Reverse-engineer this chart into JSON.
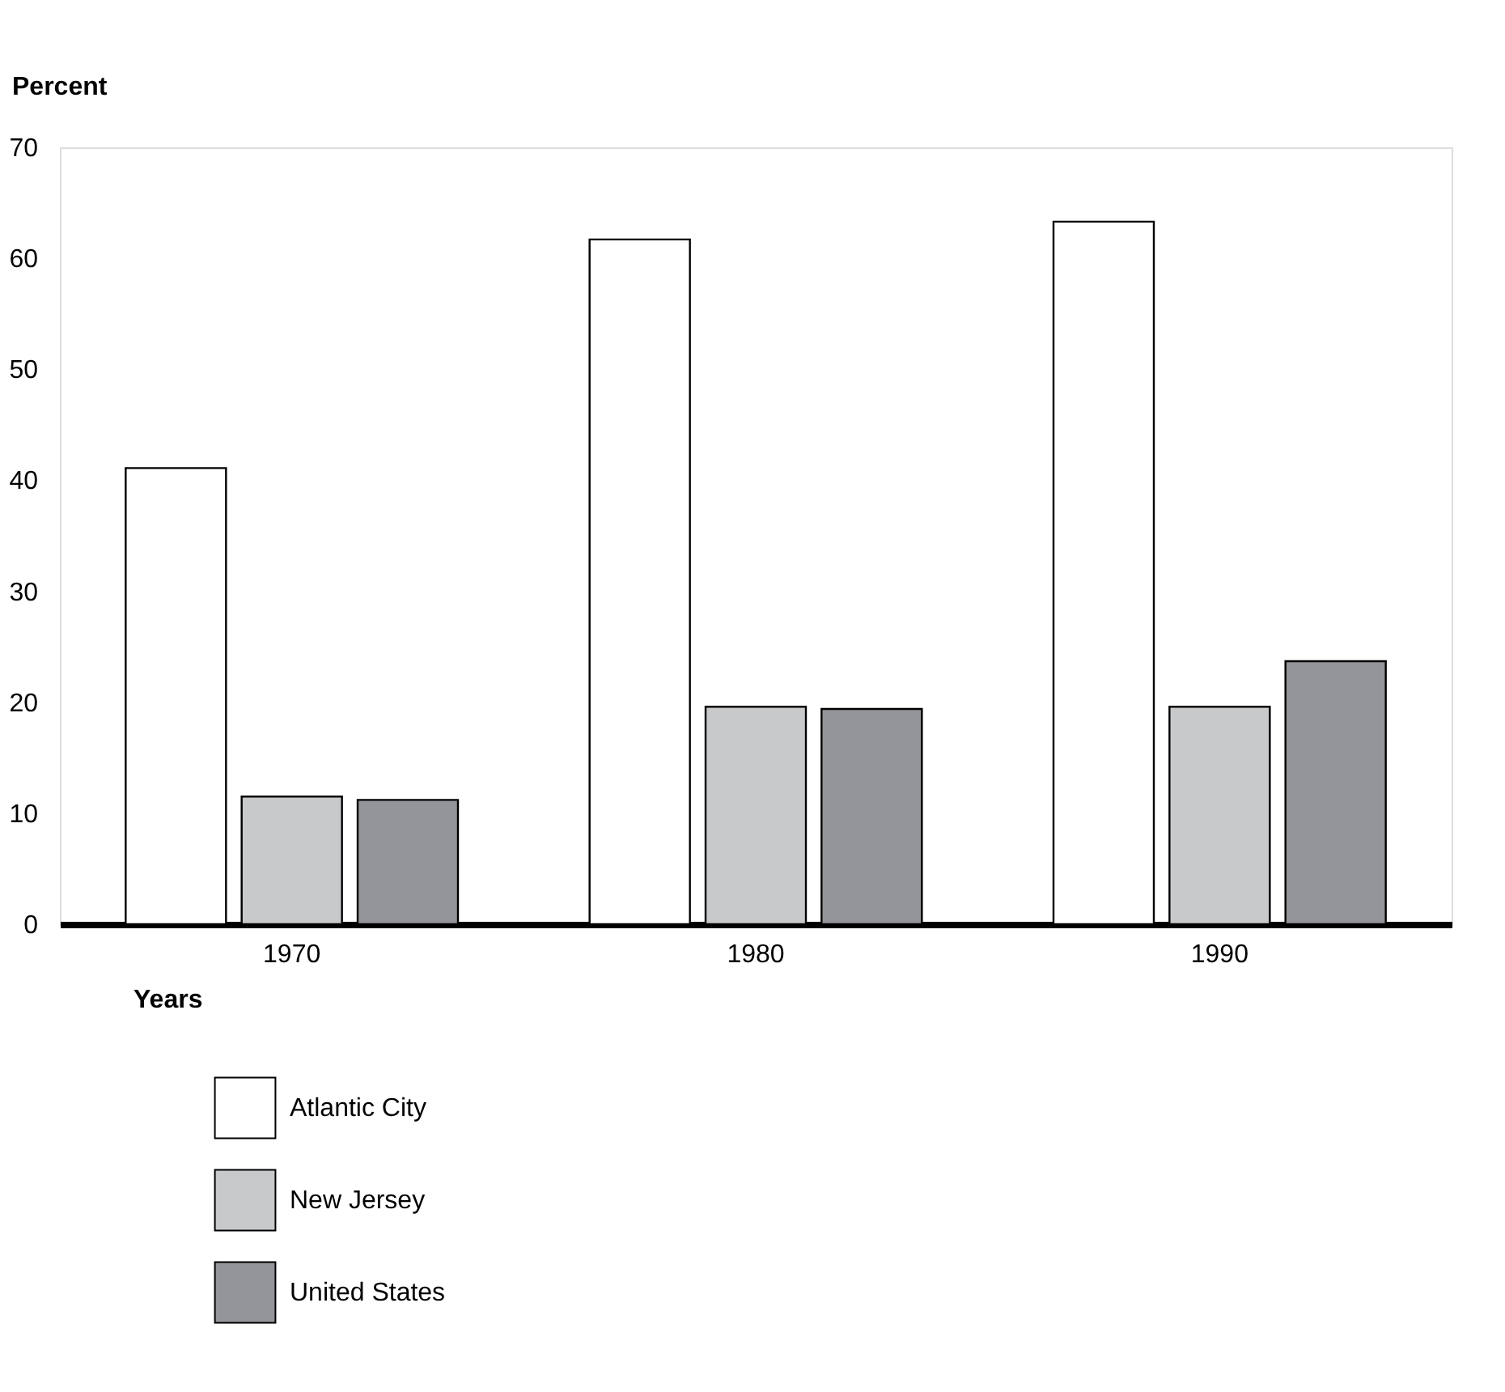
{
  "chart_data": {
    "type": "bar",
    "ylabel": "Percent",
    "xlabel": "Years",
    "categories": [
      "1970",
      "1980",
      "1990"
    ],
    "series": [
      {
        "name": "Atlantic City",
        "color": "#ffffff",
        "values": [
          41.1,
          61.7,
          63.3
        ]
      },
      {
        "name": "New Jersey",
        "color": "#c8c9cb",
        "values": [
          11.5,
          19.6,
          19.6
        ]
      },
      {
        "name": "United States",
        "color": "#939598",
        "values": [
          11.2,
          19.4,
          23.7
        ]
      }
    ],
    "ylim": [
      0,
      70
    ],
    "yticks": [
      0,
      10,
      20,
      30,
      40,
      50,
      60,
      70
    ],
    "grid": false,
    "legend": "bottom left"
  }
}
